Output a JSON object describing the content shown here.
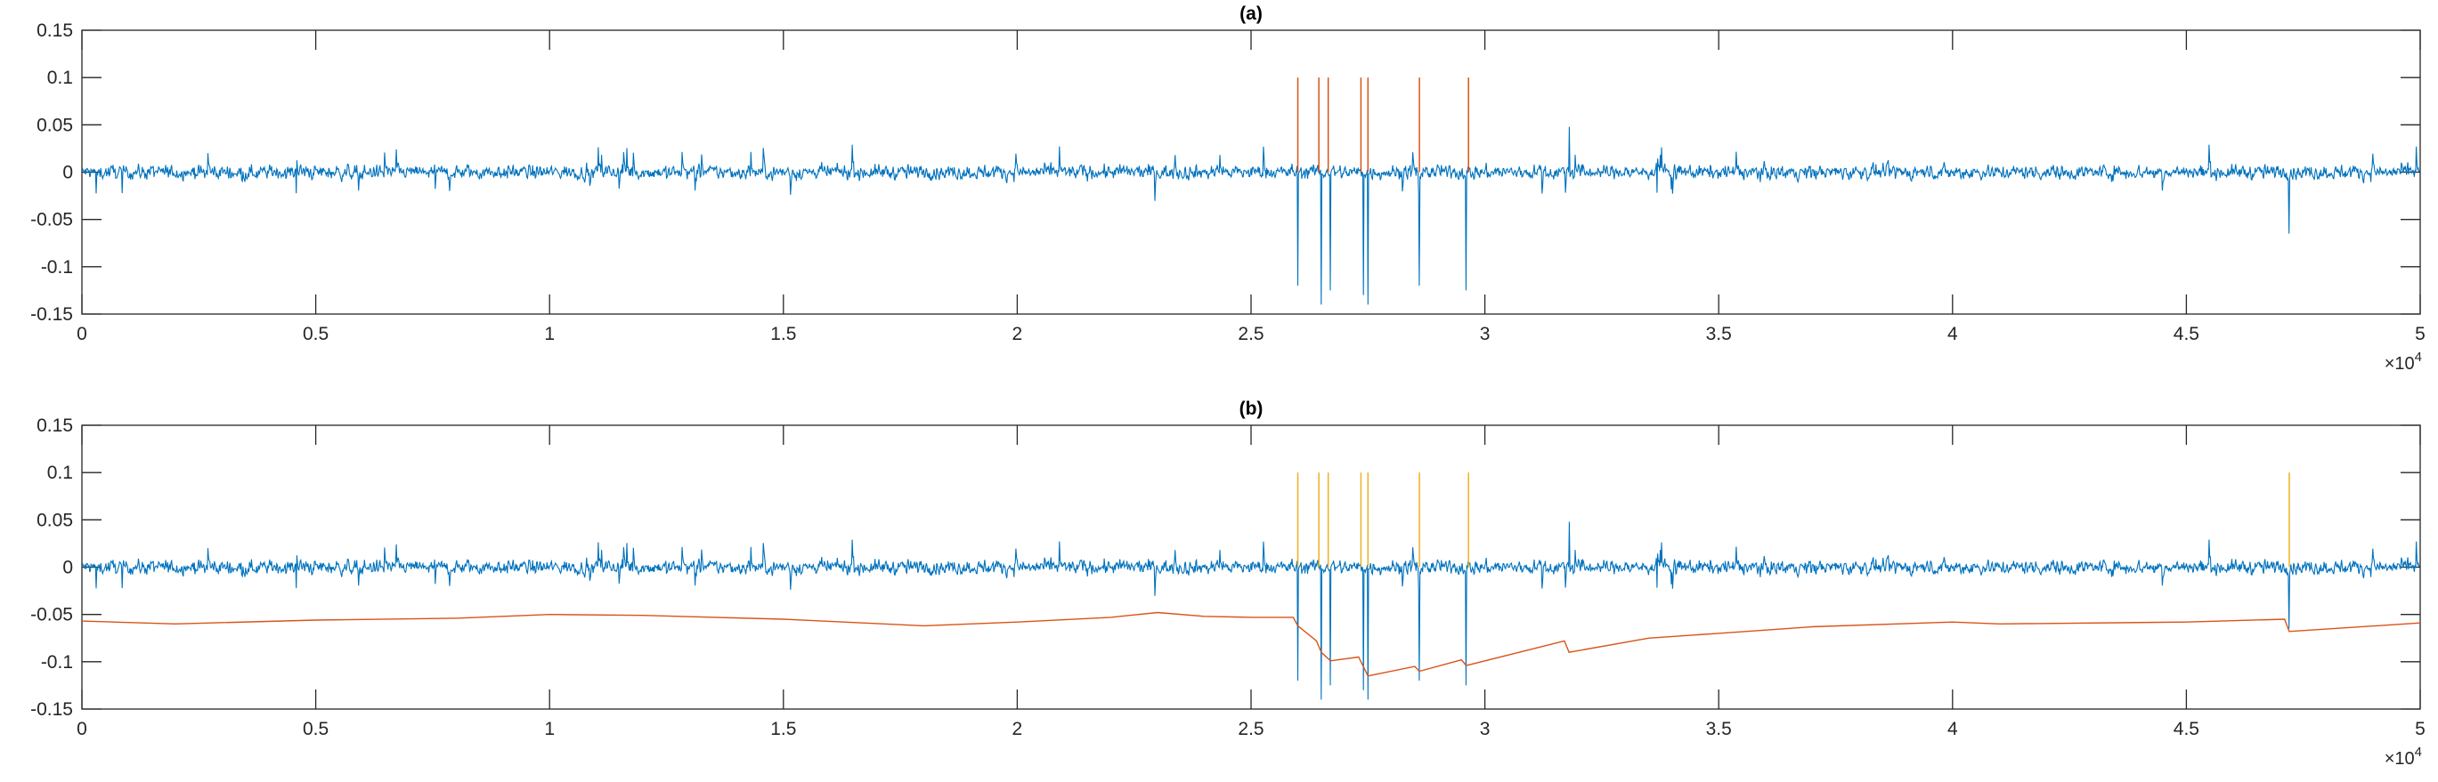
{
  "chart_data": [
    {
      "type": "line",
      "title": "(a)",
      "xlabel": "",
      "ylabel": "",
      "xlim": [
        0,
        50000
      ],
      "ylim": [
        -0.15,
        0.15
      ],
      "x_ticks": [
        0,
        5000,
        10000,
        15000,
        20000,
        25000,
        30000,
        35000,
        40000,
        45000,
        50000
      ],
      "x_tick_labels": [
        "0",
        "0.5",
        "1",
        "1.5",
        "2",
        "2.5",
        "3",
        "3.5",
        "4",
        "4.5",
        "5"
      ],
      "y_ticks": [
        -0.15,
        -0.1,
        -0.05,
        0,
        0.05,
        0.1,
        0.15
      ],
      "y_tick_labels": [
        "-0.15",
        "-0.1",
        "-0.05",
        "0",
        "0.05",
        "0.1",
        "0.15"
      ],
      "x_exponent_base": "×10",
      "x_exponent_power": "4",
      "grid": false,
      "colors": {
        "signal": "#0072BD",
        "markers": "#D95319"
      },
      "series": [
        {
          "color": "#0072BD",
          "style": "noisy-signal",
          "baseline": 0,
          "noise_amplitude": 0.012,
          "spikes": [
            {
              "x": 26000,
              "y": -0.12
            },
            {
              "x": 26500,
              "y": -0.14
            },
            {
              "x": 26700,
              "y": -0.125
            },
            {
              "x": 27400,
              "y": -0.13
            },
            {
              "x": 27500,
              "y": -0.14
            },
            {
              "x": 28600,
              "y": -0.12
            },
            {
              "x": 29600,
              "y": -0.125
            },
            {
              "x": 31800,
              "y": 0.048
            },
            {
              "x": 47200,
              "y": -0.065
            }
          ]
        },
        {
          "color": "#D95319",
          "style": "impulses",
          "x": [
            26000,
            26450,
            26650,
            27350,
            27500,
            28600,
            29650
          ],
          "y": [
            0.1,
            0.1,
            0.1,
            0.1,
            0.1,
            0.1,
            0.1
          ]
        }
      ]
    },
    {
      "type": "line",
      "title": "(b)",
      "xlabel": "",
      "ylabel": "",
      "xlim": [
        0,
        50000
      ],
      "ylim": [
        -0.15,
        0.15
      ],
      "x_ticks": [
        0,
        5000,
        10000,
        15000,
        20000,
        25000,
        30000,
        35000,
        40000,
        45000,
        50000
      ],
      "x_tick_labels": [
        "0",
        "0.5",
        "1",
        "1.5",
        "2",
        "2.5",
        "3",
        "3.5",
        "4",
        "4.5",
        "5"
      ],
      "y_ticks": [
        -0.15,
        -0.1,
        -0.05,
        0,
        0.05,
        0.1,
        0.15
      ],
      "y_tick_labels": [
        "-0.15",
        "-0.1",
        "-0.05",
        "0",
        "0.05",
        "0.1",
        "0.15"
      ],
      "x_exponent_base": "×10",
      "x_exponent_power": "4",
      "grid": false,
      "colors": {
        "signal": "#0072BD",
        "threshold": "#D95319",
        "markers": "#EDB120"
      },
      "series": [
        {
          "color": "#0072BD",
          "style": "noisy-signal",
          "baseline": 0,
          "noise_amplitude": 0.012,
          "spikes": [
            {
              "x": 26000,
              "y": -0.12
            },
            {
              "x": 26500,
              "y": -0.14
            },
            {
              "x": 26700,
              "y": -0.125
            },
            {
              "x": 27400,
              "y": -0.13
            },
            {
              "x": 27500,
              "y": -0.14
            },
            {
              "x": 28600,
              "y": -0.12
            },
            {
              "x": 29600,
              "y": -0.125
            },
            {
              "x": 31800,
              "y": 0.048
            },
            {
              "x": 47200,
              "y": -0.065
            }
          ]
        },
        {
          "color": "#D95319",
          "style": "line",
          "x": [
            0,
            2000,
            5000,
            8000,
            10000,
            12000,
            15000,
            18000,
            20000,
            22000,
            23000,
            24000,
            25000,
            25900,
            26000,
            26400,
            26500,
            26700,
            27300,
            27400,
            27500,
            28500,
            28600,
            29500,
            29600,
            31700,
            31800,
            33500,
            35000,
            37000,
            40000,
            41000,
            45000,
            47100,
            47200,
            50000
          ],
          "y": [
            -0.057,
            -0.06,
            -0.056,
            -0.054,
            -0.05,
            -0.051,
            -0.055,
            -0.062,
            -0.058,
            -0.053,
            -0.048,
            -0.052,
            -0.053,
            -0.053,
            -0.062,
            -0.078,
            -0.09,
            -0.099,
            -0.095,
            -0.105,
            -0.115,
            -0.105,
            -0.11,
            -0.098,
            -0.104,
            -0.078,
            -0.09,
            -0.075,
            -0.07,
            -0.063,
            -0.058,
            -0.06,
            -0.058,
            -0.055,
            -0.068,
            -0.059
          ]
        },
        {
          "color": "#EDB120",
          "style": "impulses",
          "x": [
            26000,
            26450,
            26650,
            27350,
            27500,
            28600,
            29650,
            47200
          ],
          "y": [
            0.1,
            0.1,
            0.1,
            0.1,
            0.1,
            0.1,
            0.1,
            0.1
          ]
        }
      ]
    }
  ]
}
